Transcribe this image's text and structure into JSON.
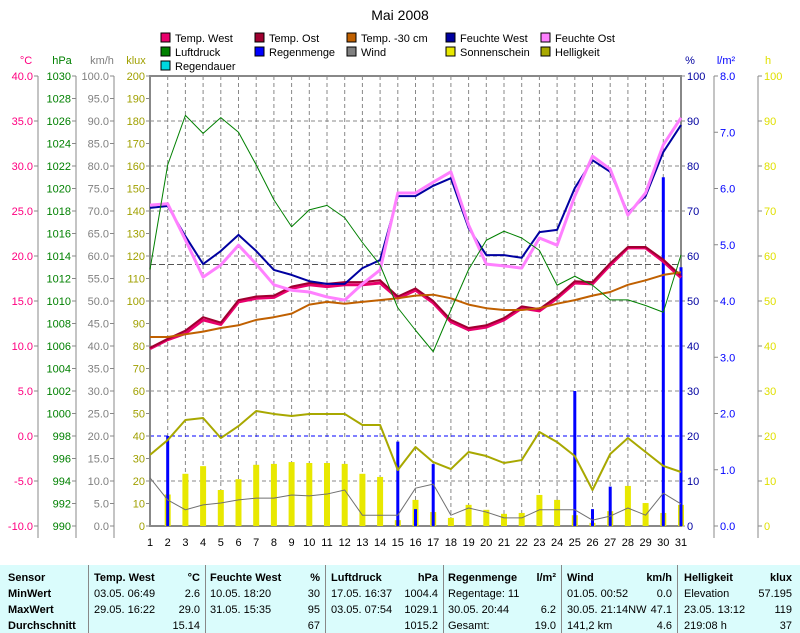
{
  "chart_data": {
    "type": "line",
    "title": "Mai 2008",
    "x": [
      1,
      2,
      3,
      4,
      5,
      6,
      7,
      8,
      9,
      10,
      11,
      12,
      13,
      14,
      15,
      16,
      17,
      18,
      19,
      20,
      21,
      22,
      23,
      24,
      25,
      26,
      27,
      28,
      29,
      30,
      31
    ],
    "axes": {
      "temp": {
        "unit": "°C",
        "range": [
          -10,
          40
        ],
        "step": 5,
        "color": "#ff0080"
      },
      "pressure": {
        "unit": "hPa",
        "range": [
          990,
          1030
        ],
        "step": 2,
        "color": "#008000"
      },
      "wind": {
        "unit": "km/h",
        "range": [
          0,
          100
        ],
        "step": 5,
        "color": "#808080"
      },
      "light": {
        "unit": "klux",
        "range": [
          0,
          200
        ],
        "step": 10,
        "color": "#a0a000"
      },
      "humidity": {
        "unit": "%",
        "range": [
          0,
          100
        ],
        "step": 10,
        "color": "#0000a0"
      },
      "rain": {
        "unit": "l/m²",
        "range": [
          0,
          8
        ],
        "step": 1,
        "color": "#0000ff"
      },
      "sun": {
        "unit": "h",
        "range": [
          0,
          100
        ],
        "step": 10,
        "color": "#e0e000"
      }
    },
    "legend": [
      {
        "name": "Temp. West",
        "color": "#e8006c"
      },
      {
        "name": "Temp. Ost",
        "color": "#a00030"
      },
      {
        "name": "Temp. -30 cm",
        "color": "#c06000"
      },
      {
        "name": "Feuchte West",
        "color": "#0000a0"
      },
      {
        "name": "Feuchte Ost",
        "color": "#ff80ff"
      },
      {
        "name": "Luftdruck",
        "color": "#008000"
      },
      {
        "name": "Regenmenge",
        "color": "#0000ff"
      },
      {
        "name": "Wind",
        "color": "#808080"
      },
      {
        "name": "Sonnenschein",
        "color": "#e8e800"
      },
      {
        "name": "Helligkeit",
        "color": "#a8a800"
      },
      {
        "name": "Regendauer",
        "color": "#00d8e0"
      }
    ],
    "series": [
      {
        "name": "Temp. West",
        "axis": "temp",
        "type": "line",
        "color": "#e8006c",
        "width": 3,
        "values": [
          9.7,
          10.7,
          11.4,
          12.9,
          12.4,
          14.9,
          15.3,
          15.4,
          16.4,
          16.8,
          16.6,
          16.8,
          16.8,
          17.0,
          15.3,
          16.2,
          14.8,
          12.7,
          11.8,
          12.1,
          12.9,
          14.2,
          13.9,
          15.3,
          17.0,
          16.9,
          19.0,
          20.9,
          20.9,
          19.4,
          17.6
        ]
      },
      {
        "name": "Temp. Ost",
        "axis": "temp",
        "type": "line",
        "color": "#a00030",
        "width": 2,
        "values": [
          9.8,
          10.8,
          11.7,
          13.2,
          12.6,
          15.1,
          15.5,
          15.6,
          16.6,
          17.0,
          16.9,
          17.1,
          17.1,
          17.3,
          15.5,
          16.4,
          15.0,
          12.9,
          12.0,
          12.3,
          13.1,
          14.4,
          14.1,
          15.5,
          17.2,
          17.1,
          19.2,
          21.0,
          21.0,
          19.6,
          17.8
        ]
      },
      {
        "name": "Temp. -30 cm",
        "axis": "temp",
        "type": "line",
        "color": "#c06000",
        "width": 2,
        "values": [
          11.0,
          11.0,
          11.3,
          11.6,
          12.0,
          12.3,
          12.9,
          13.2,
          13.6,
          14.6,
          14.9,
          14.7,
          14.9,
          15.1,
          15.3,
          15.6,
          15.7,
          15.3,
          14.6,
          14.2,
          14.0,
          14.0,
          14.2,
          14.7,
          15.1,
          15.6,
          16.0,
          16.8,
          17.3,
          17.9,
          18.2
        ]
      },
      {
        "name": "Feuchte West",
        "axis": "humidity",
        "type": "line",
        "color": "#0000a0",
        "width": 2,
        "values": [
          70.7,
          71.1,
          64.4,
          58.2,
          61.1,
          64.7,
          61.1,
          56.9,
          55.8,
          54.4,
          53.8,
          53.8,
          57.3,
          59.1,
          73.3,
          73.3,
          75.6,
          77.3,
          66.2,
          60.2,
          60.2,
          59.6,
          65.3,
          65.8,
          75.1,
          81.3,
          78.7,
          69.6,
          73.3,
          83.1,
          89.1
        ]
      },
      {
        "name": "Feuchte Ost",
        "axis": "humidity",
        "type": "line",
        "color": "#ff80ff",
        "width": 3,
        "values": [
          71.3,
          71.6,
          63.6,
          55.3,
          58.0,
          62.4,
          58.2,
          53.6,
          52.4,
          52.0,
          50.9,
          50.2,
          53.8,
          56.9,
          74.0,
          74.0,
          76.4,
          78.7,
          66.9,
          58.2,
          57.8,
          57.3,
          64.0,
          62.4,
          73.3,
          82.2,
          79.3,
          69.1,
          74.0,
          84.7,
          90.7
        ]
      },
      {
        "name": "Luftdruck",
        "axis": "pressure",
        "type": "line",
        "color": "#008000",
        "width": 1,
        "values": [
          1012.8,
          1022.1,
          1026.5,
          1024.9,
          1026.3,
          1025.0,
          1022.1,
          1019.0,
          1016.6,
          1018.1,
          1018.5,
          1017.4,
          1015.2,
          1013.2,
          1009.4,
          1007.4,
          1005.5,
          1009.2,
          1012.8,
          1015.4,
          1016.2,
          1015.6,
          1014.5,
          1011.4,
          1012.2,
          1011.4,
          1010.1,
          1010.1,
          1009.6,
          1009.0,
          1014.1
        ]
      },
      {
        "name": "Helligkeit",
        "axis": "light",
        "type": "line",
        "color": "#a8a800",
        "width": 2,
        "values": [
          31.6,
          38.2,
          47.1,
          48.0,
          39.1,
          44.4,
          51.1,
          49.8,
          48.9,
          49.8,
          49.8,
          49.8,
          44.9,
          44.9,
          24.9,
          35.1,
          28.4,
          25.3,
          32.9,
          31.1,
          28.0,
          29.3,
          41.8,
          37.3,
          31.1,
          16.0,
          32.0,
          39.1,
          32.9,
          26.7,
          24.0
        ]
      },
      {
        "name": "Wind",
        "axis": "wind",
        "type": "line",
        "color": "#707070",
        "width": 1,
        "values": [
          10.7,
          5.8,
          3.6,
          4.7,
          5.1,
          5.8,
          6.2,
          6.2,
          6.9,
          6.7,
          7.1,
          8.0,
          2.4,
          2.4,
          2.4,
          8.4,
          9.3,
          2.4,
          4.0,
          3.1,
          1.8,
          1.8,
          3.6,
          3.6,
          3.6,
          1.3,
          2.2,
          4.0,
          2.4,
          7.3,
          4.9
        ]
      },
      {
        "name": "Sonnenschein",
        "axis": "sun",
        "type": "bar",
        "color": "#e8e800",
        "values": [
          0,
          7.0,
          11.6,
          13.3,
          8.0,
          10.4,
          13.6,
          13.8,
          14.2,
          14.0,
          14.0,
          13.8,
          11.6,
          10.9,
          1.3,
          5.8,
          3.1,
          1.8,
          4.7,
          3.6,
          2.7,
          2.9,
          6.9,
          5.8,
          2.4,
          0.7,
          3.3,
          8.9,
          5.1,
          2.9,
          4.7
        ]
      },
      {
        "name": "Regenmenge",
        "axis": "rain",
        "type": "bar",
        "color": "#0000ff",
        "values": [
          0,
          1.6,
          0,
          0,
          0,
          0,
          0,
          0,
          0,
          0,
          0,
          0,
          0,
          0,
          1.5,
          0.3,
          1.1,
          0,
          0,
          0,
          0,
          0,
          0,
          0,
          2.4,
          0.3,
          0.7,
          0,
          0,
          6.2,
          4.6
        ]
      }
    ]
  },
  "table": {
    "sensor": {
      "header": "Sensor",
      "rows": [
        "MinWert",
        "MaxWert",
        "Durchschnitt"
      ]
    },
    "temp": {
      "header": "Temp. West",
      "unit": "°C",
      "rows": [
        [
          "03.05.  06:49",
          "2.6"
        ],
        [
          "29.05.  16:22",
          "29.0"
        ],
        [
          "",
          "15.14"
        ]
      ]
    },
    "hum": {
      "header": "Feuchte West",
      "unit": "%",
      "rows": [
        [
          "10.05.  18:20",
          "30"
        ],
        [
          "31.05.  15:35",
          "95"
        ],
        [
          "",
          "67"
        ]
      ]
    },
    "press": {
      "header": "Luftdruck",
      "unit": "hPa",
      "rows": [
        [
          "17.05.  16:37",
          "1004.4"
        ],
        [
          "03.05.  07:54",
          "1029.1"
        ],
        [
          "",
          "1015.2"
        ]
      ]
    },
    "rain": {
      "header": "Regenmenge",
      "unit": "l/m²",
      "rows": [
        [
          "Regentage: 11",
          ""
        ],
        [
          "30.05.  20:44",
          "6.2"
        ],
        [
          "Gesamt:",
          "19.0"
        ]
      ]
    },
    "wind": {
      "header": "Wind",
      "unit": "km/h",
      "rows": [
        [
          "01.05.  00:52",
          "0.0"
        ],
        [
          "30.05.  21:14NW",
          "47.1"
        ],
        [
          "141,2 km",
          "4.6"
        ]
      ]
    },
    "light": {
      "header": "Helligkeit",
      "unit": "klux",
      "rows": [
        [
          "Elevation",
          "57.195"
        ],
        [
          "23.05.  13:12",
          "119"
        ],
        [
          "219:08 h",
          "37"
        ]
      ]
    }
  }
}
